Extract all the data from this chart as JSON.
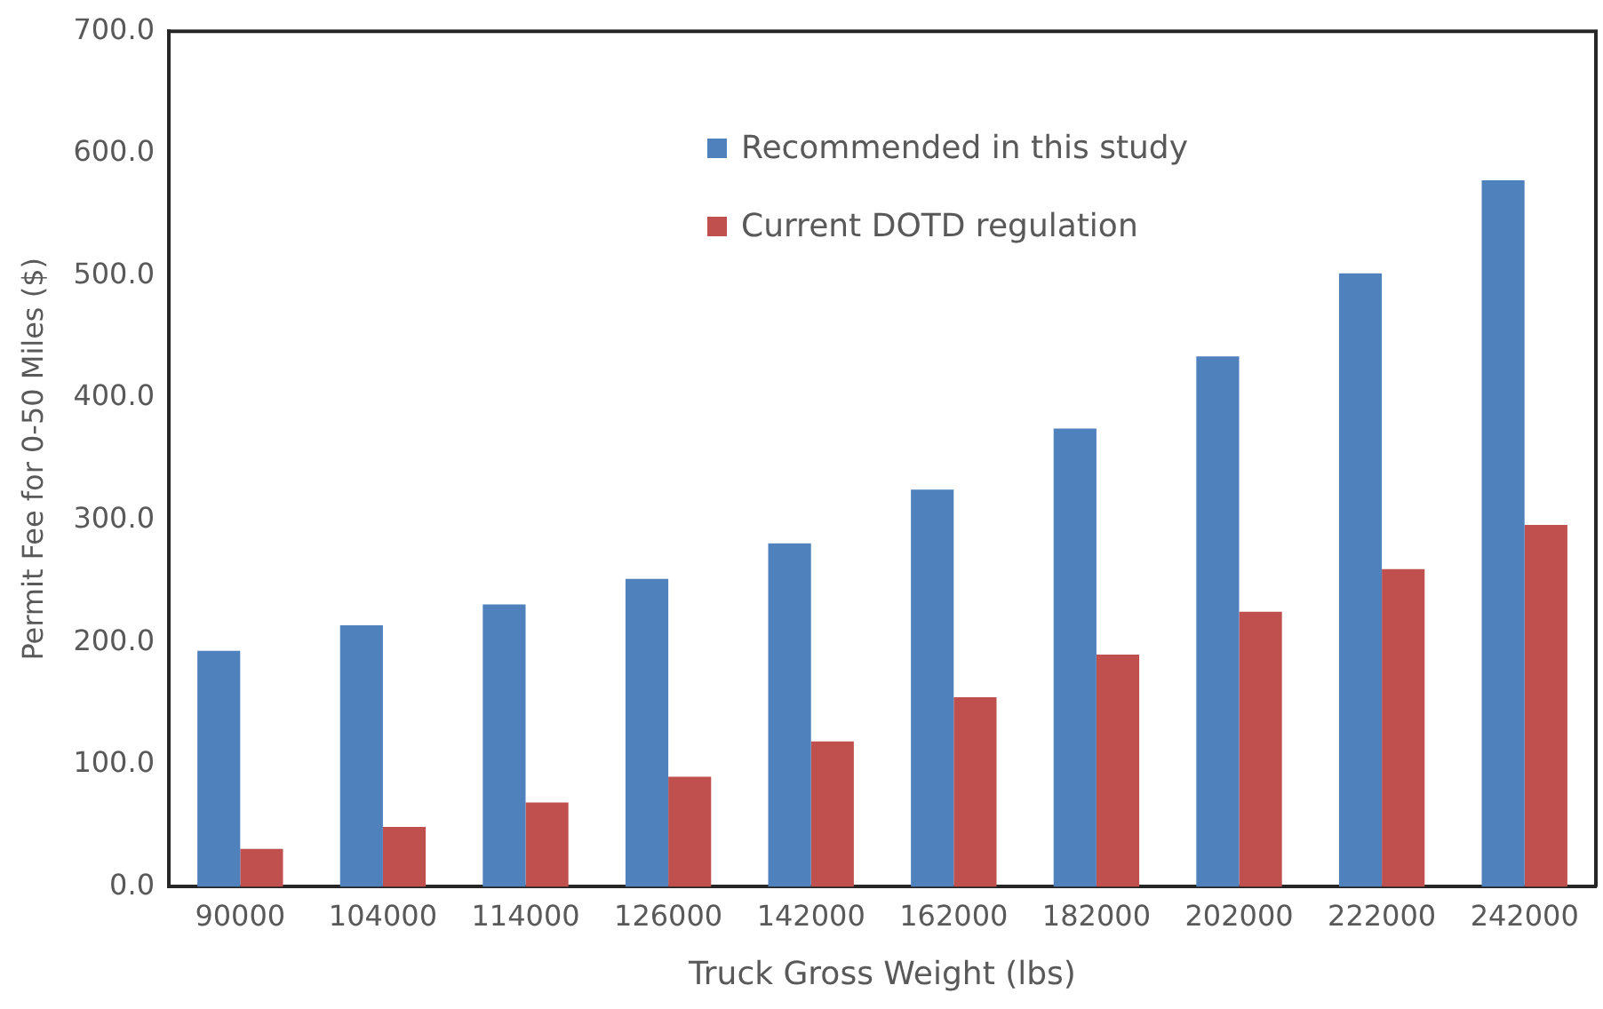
{
  "chart_data": {
    "type": "bar",
    "xlabel": "Truck Gross Weight (lbs)",
    "ylabel": "Permit Fee for 0-50 Miles ($)",
    "categories": [
      "90000",
      "104000",
      "114000",
      "126000",
      "142000",
      "162000",
      "182000",
      "202000",
      "222000",
      "242000"
    ],
    "series": [
      {
        "name": "Recommended in this study",
        "color": "#4f81bd",
        "values": [
          193,
          214,
          231,
          252,
          281,
          325,
          375,
          434,
          502,
          578
        ]
      },
      {
        "name": "Current DOTD regulation",
        "color": "#c0504d",
        "values": [
          31,
          49,
          69,
          90,
          119,
          155,
          190,
          225,
          260,
          296
        ]
      }
    ],
    "ylim": [
      0,
      700
    ],
    "yticks": [
      {
        "value": 0,
        "label": "0.0"
      },
      {
        "value": 100,
        "label": "100.0"
      },
      {
        "value": 200,
        "label": "200.0"
      },
      {
        "value": 300,
        "label": "300.0"
      },
      {
        "value": 400,
        "label": "400.0"
      },
      {
        "value": 500,
        "label": "500.0"
      },
      {
        "value": 600,
        "label": "600.0"
      },
      {
        "value": 700,
        "label": "700.0"
      }
    ],
    "grid": false,
    "legend": "top"
  }
}
